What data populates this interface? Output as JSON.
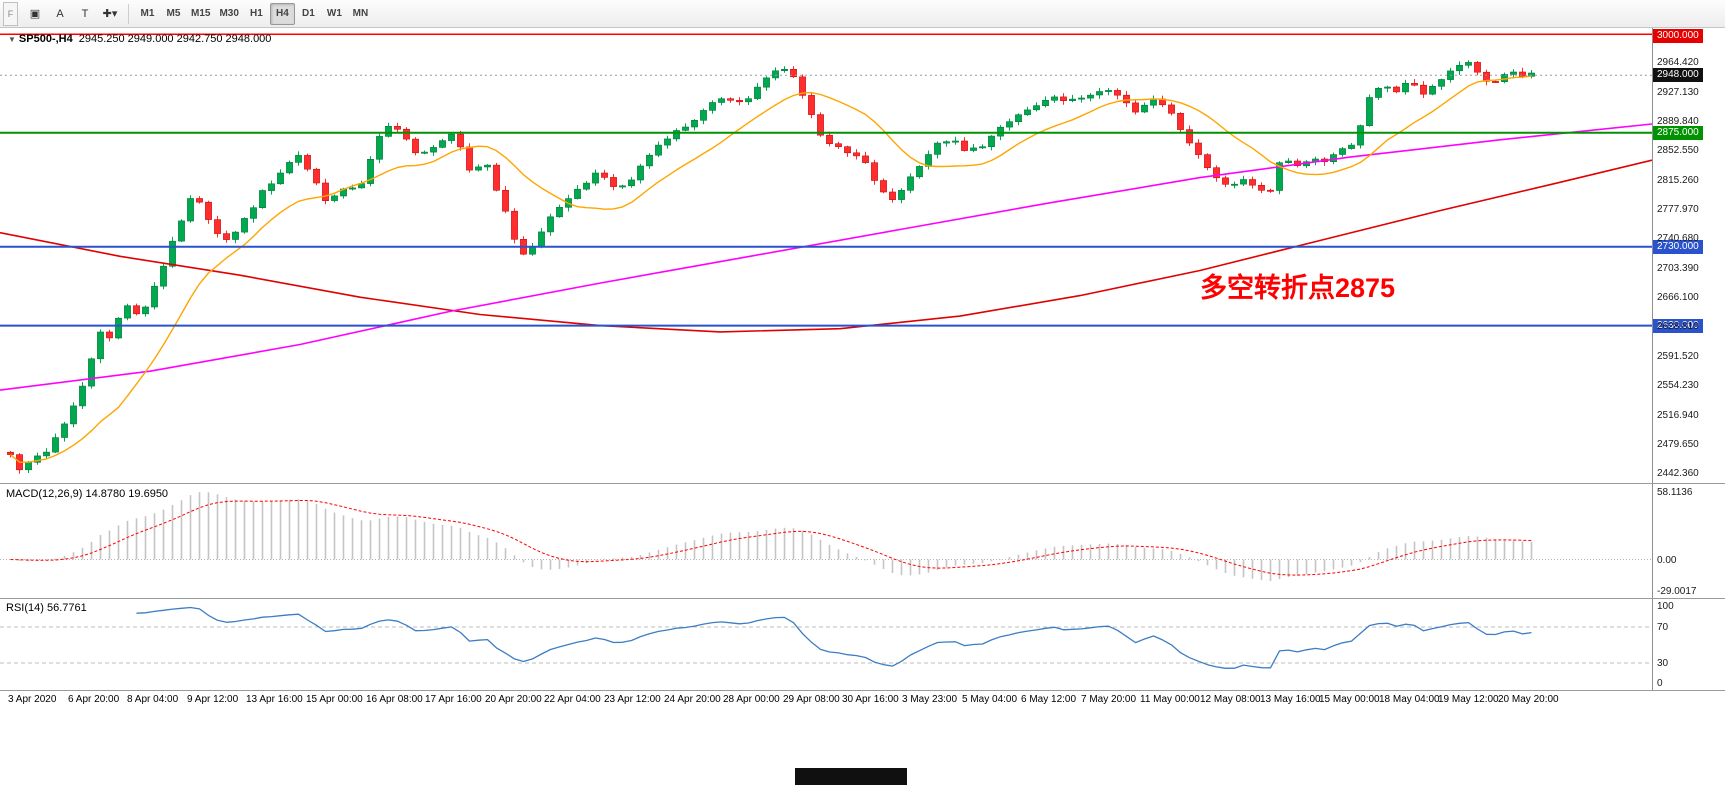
{
  "toolbar": {
    "dock_label": "F",
    "tools": [
      {
        "name": "chart-window-icon",
        "glyph": "▣"
      },
      {
        "name": "text-label-button",
        "glyph": "A"
      },
      {
        "name": "template-button",
        "glyph": "T"
      },
      {
        "name": "crosshair-tool-dropdown",
        "glyph": "✚▾"
      }
    ],
    "timeframes": [
      "M1",
      "M5",
      "M15",
      "M30",
      "H1",
      "H4",
      "D1",
      "W1",
      "MN"
    ],
    "active_timeframe": "H4"
  },
  "chart": {
    "marker": "▼",
    "symbol_period": "SP500-,H4",
    "ohlc": "2945.250 2949.000 2942.750 2948.000"
  },
  "annotation": {
    "text": "多空转折点2875",
    "color": "#FF0000"
  },
  "levels": [
    {
      "price": 3000.0,
      "label": "3000.000",
      "line_color": "#FF0000",
      "badge_bg": "#E60000",
      "style": "solid",
      "width": 1.5
    },
    {
      "price": 2948.0,
      "label": "2948.000",
      "line_color": "#9A9A9A",
      "badge_bg": "#111111",
      "style": "dotted",
      "width": 1,
      "current": true
    },
    {
      "price": 2875.0,
      "label": "2875.000",
      "line_color": "#009200",
      "badge_bg": "#009200",
      "style": "solid",
      "width": 2
    },
    {
      "price": 2730.0,
      "label": "2730.000",
      "line_color": "#2952CC",
      "badge_bg": "#2952CC",
      "style": "solid",
      "width": 2
    },
    {
      "price": 2630.0,
      "label": "2630.000",
      "line_color": "#2952CC",
      "badge_bg": "#2952CC",
      "style": "solid",
      "width": 2
    }
  ],
  "chart_data": {
    "type": "candlestick",
    "title": "SP500-,H4",
    "y_range": [
      2430,
      3008
    ],
    "candles_count": 170,
    "colors": {
      "bull": "#00A94F",
      "bull_edge": "#007A38",
      "bear": "#FF2D2D",
      "bear_edge": "#C90F0F",
      "ma_fast": "#FFA500",
      "ma_mid": "#FF00FF",
      "ma_slow": "#E00000",
      "macd_hist": "#C4C4C4",
      "macd_signal": "#FF0000",
      "rsi_line": "#3C7DC4"
    },
    "close_path": [
      [
        0.0,
        2468
      ],
      [
        0.006,
        2445
      ],
      [
        0.015,
        2462
      ],
      [
        0.025,
        2472
      ],
      [
        0.036,
        2505
      ],
      [
        0.049,
        2560
      ],
      [
        0.059,
        2625
      ],
      [
        0.066,
        2612
      ],
      [
        0.075,
        2660
      ],
      [
        0.085,
        2638
      ],
      [
        0.098,
        2695
      ],
      [
        0.111,
        2755
      ],
      [
        0.12,
        2797
      ],
      [
        0.13,
        2768
      ],
      [
        0.14,
        2732
      ],
      [
        0.153,
        2762
      ],
      [
        0.166,
        2800
      ],
      [
        0.179,
        2828
      ],
      [
        0.189,
        2848
      ],
      [
        0.199,
        2818
      ],
      [
        0.208,
        2788
      ],
      [
        0.22,
        2802
      ],
      [
        0.231,
        2812
      ],
      [
        0.244,
        2875
      ],
      [
        0.252,
        2888
      ],
      [
        0.26,
        2868
      ],
      [
        0.268,
        2842
      ],
      [
        0.28,
        2862
      ],
      [
        0.292,
        2872
      ],
      [
        0.303,
        2822
      ],
      [
        0.312,
        2842
      ],
      [
        0.322,
        2792
      ],
      [
        0.331,
        2742
      ],
      [
        0.339,
        2716
      ],
      [
        0.349,
        2748
      ],
      [
        0.358,
        2778
      ],
      [
        0.368,
        2790
      ],
      [
        0.378,
        2812
      ],
      [
        0.388,
        2828
      ],
      [
        0.397,
        2802
      ],
      [
        0.407,
        2812
      ],
      [
        0.417,
        2840
      ],
      [
        0.43,
        2868
      ],
      [
        0.443,
        2882
      ],
      [
        0.456,
        2902
      ],
      [
        0.469,
        2922
      ],
      [
        0.482,
        2912
      ],
      [
        0.494,
        2938
      ],
      [
        0.506,
        2958
      ],
      [
        0.515,
        2948
      ],
      [
        0.524,
        2908
      ],
      [
        0.533,
        2872
      ],
      [
        0.541,
        2858
      ],
      [
        0.551,
        2848
      ],
      [
        0.56,
        2842
      ],
      [
        0.569,
        2812
      ],
      [
        0.578,
        2786
      ],
      [
        0.588,
        2808
      ],
      [
        0.598,
        2836
      ],
      [
        0.608,
        2858
      ],
      [
        0.618,
        2868
      ],
      [
        0.628,
        2850
      ],
      [
        0.638,
        2858
      ],
      [
        0.65,
        2878
      ],
      [
        0.663,
        2898
      ],
      [
        0.676,
        2910
      ],
      [
        0.689,
        2920
      ],
      [
        0.702,
        2914
      ],
      [
        0.715,
        2930
      ],
      [
        0.728,
        2922
      ],
      [
        0.74,
        2900
      ],
      [
        0.752,
        2918
      ],
      [
        0.762,
        2906
      ],
      [
        0.772,
        2872
      ],
      [
        0.782,
        2842
      ],
      [
        0.792,
        2820
      ],
      [
        0.801,
        2810
      ],
      [
        0.81,
        2816
      ],
      [
        0.82,
        2804
      ],
      [
        0.828,
        2800
      ],
      [
        0.836,
        2850
      ],
      [
        0.846,
        2830
      ],
      [
        0.855,
        2846
      ],
      [
        0.864,
        2838
      ],
      [
        0.874,
        2854
      ],
      [
        0.884,
        2864
      ],
      [
        0.893,
        2916
      ],
      [
        0.902,
        2938
      ],
      [
        0.912,
        2928
      ],
      [
        0.921,
        2940
      ],
      [
        0.93,
        2924
      ],
      [
        0.94,
        2944
      ],
      [
        0.95,
        2958
      ],
      [
        0.958,
        2968
      ],
      [
        0.966,
        2946
      ],
      [
        0.975,
        2938
      ],
      [
        0.985,
        2950
      ],
      [
        1.0,
        2948
      ]
    ],
    "ma_mid_path": [
      [
        0,
        2548
      ],
      [
        150,
        2572
      ],
      [
        300,
        2606
      ],
      [
        450,
        2648
      ],
      [
        600,
        2684
      ],
      [
        750,
        2718
      ],
      [
        900,
        2752
      ],
      [
        1050,
        2786
      ],
      [
        1200,
        2818
      ],
      [
        1350,
        2844
      ],
      [
        1500,
        2866
      ],
      [
        1652,
        2886
      ]
    ],
    "ma_slow_path": [
      [
        0,
        2748
      ],
      [
        120,
        2718
      ],
      [
        240,
        2694
      ],
      [
        360,
        2666
      ],
      [
        480,
        2644
      ],
      [
        600,
        2630
      ],
      [
        720,
        2622
      ],
      [
        840,
        2626
      ],
      [
        960,
        2642
      ],
      [
        1080,
        2668
      ],
      [
        1200,
        2700
      ],
      [
        1320,
        2738
      ],
      [
        1440,
        2776
      ],
      [
        1560,
        2812
      ],
      [
        1652,
        2840
      ]
    ],
    "price_axis_labels": [
      "2964.420",
      "2927.130",
      "2889.840",
      "2852.550",
      "2815.260",
      "2777.970",
      "2740.680",
      "2703.390",
      "2666.100",
      "2628.810",
      "2591.520",
      "2554.230",
      "2516.940",
      "2479.650",
      "2442.360"
    ],
    "indicators": {
      "macd": {
        "title": "MACD(12,26,9) 14.8780 19.6950",
        "params": "12,26,9",
        "value": 14.878,
        "signal": 19.695,
        "axis_labels": [
          "58.1136",
          "0.00",
          "-29.0017"
        ],
        "y_range": [
          -32,
          62
        ]
      },
      "rsi": {
        "title": "RSI(14) 56.7761",
        "params": "14",
        "value": 56.7761,
        "axis_labels": [
          "100",
          "70",
          "30",
          "0"
        ],
        "levels": [
          70,
          30
        ],
        "y_range": [
          0,
          100
        ]
      }
    },
    "time_labels": [
      "3 Apr 2020",
      "6 Apr 20:00",
      "8 Apr 04:00",
      "9 Apr 12:00",
      "13 Apr 16:00",
      "15 Apr 00:00",
      "16 Apr 08:00",
      "17 Apr 16:00",
      "20 Apr 20:00",
      "22 Apr 04:00",
      "23 Apr 12:00",
      "24 Apr 20:00",
      "28 Apr 00:00",
      "29 Apr 08:00",
      "30 Apr 16:00",
      "3 May 23:00",
      "5 May 04:00",
      "6 May 12:00",
      "7 May 20:00",
      "11 May 00:00",
      "12 May 08:00",
      "13 May 16:00",
      "15 May 00:00",
      "18 May 04:00",
      "19 May 12:00",
      "20 May 20:00"
    ]
  }
}
